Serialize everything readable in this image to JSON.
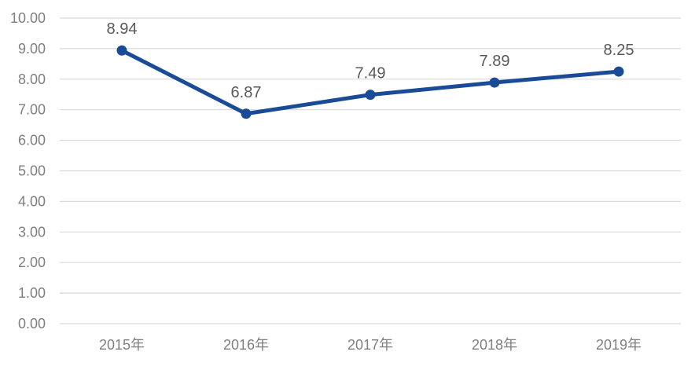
{
  "chart_data": {
    "type": "line",
    "categories": [
      "2015年",
      "2016年",
      "2017年",
      "2018年",
      "2019年"
    ],
    "values": [
      8.94,
      6.87,
      7.49,
      7.89,
      8.25
    ],
    "data_labels": [
      "8.94",
      "6.87",
      "7.49",
      "7.89",
      "8.25"
    ],
    "title": "",
    "xlabel": "",
    "ylabel": "",
    "ylim": [
      0,
      10
    ],
    "ytick_step": 1,
    "ytick_labels": [
      "0.00",
      "1.00",
      "2.00",
      "3.00",
      "4.00",
      "5.00",
      "6.00",
      "7.00",
      "8.00",
      "9.00",
      "10.00"
    ],
    "grid": true,
    "legend_position": "none",
    "colors": {
      "line": "#1A4B96",
      "marker": "#1A4B96",
      "data_label": "#595959",
      "tick_label": "#7F7F7F",
      "gridline": "#D9D9D9",
      "background": "#FFFFFF"
    }
  }
}
